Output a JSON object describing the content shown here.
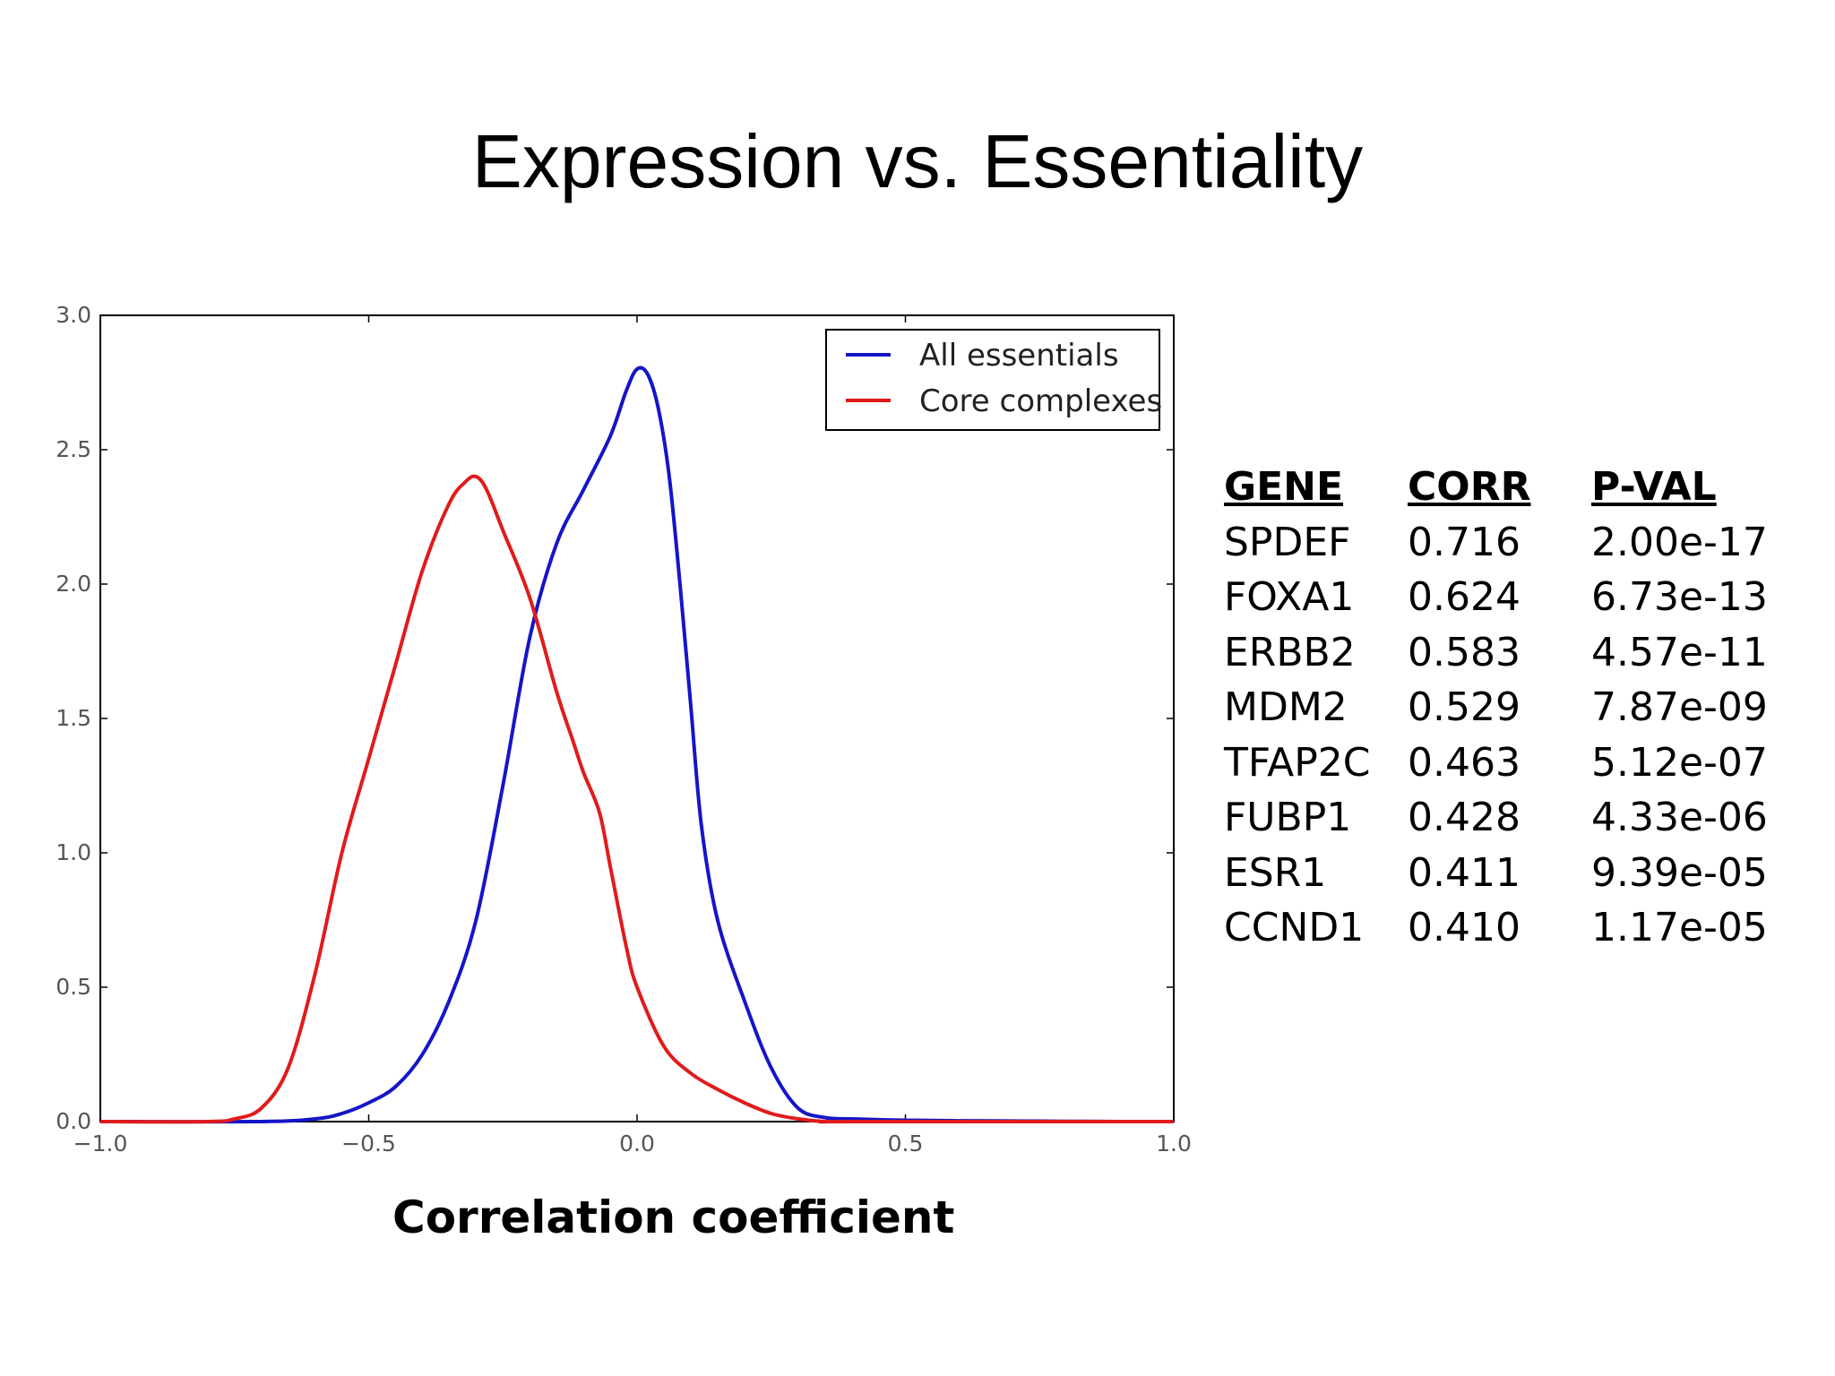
{
  "title": "Expression vs. Essentiality",
  "x_caption": "Correlation coefficient",
  "table": {
    "headers": [
      "GENE",
      "CORR",
      "P-VAL"
    ],
    "rows": [
      [
        "SPDEF",
        "0.716",
        "2.00e-17"
      ],
      [
        "FOXA1",
        "0.624",
        "6.73e-13"
      ],
      [
        "ERBB2",
        "0.583",
        "4.57e-11"
      ],
      [
        "MDM2",
        "0.529",
        "7.87e-09"
      ],
      [
        "TFAP2C",
        "0.463",
        "5.12e-07"
      ],
      [
        "FUBP1",
        "0.428",
        "4.33e-06"
      ],
      [
        "ESR1",
        "0.411",
        "9.39e-05"
      ],
      [
        "CCND1",
        "0.410",
        "1.17e-05"
      ]
    ]
  },
  "chart_data": {
    "type": "line",
    "xlim": [
      -1.0,
      1.0
    ],
    "ylim": [
      0.0,
      3.0
    ],
    "xticks": [
      -1.0,
      -0.5,
      0.0,
      0.5,
      1.0
    ],
    "xtick_labels": [
      "−1.0",
      "−0.5",
      "0.0",
      "0.5",
      "1.0"
    ],
    "yticks": [
      0.0,
      0.5,
      1.0,
      1.5,
      2.0,
      2.5,
      3.0
    ],
    "ytick_labels": [
      "0.0",
      "0.5",
      "1.0",
      "1.5",
      "2.0",
      "2.5",
      "3.0"
    ],
    "grid": false,
    "legend_position": "top-right",
    "series": [
      {
        "name": "All essentials",
        "color": "#1515c8",
        "x": [
          -1.0,
          -0.7,
          -0.6,
          -0.55,
          -0.5,
          -0.45,
          -0.4,
          -0.35,
          -0.3,
          -0.25,
          -0.2,
          -0.15,
          -0.1,
          -0.05,
          -0.02,
          0.0,
          0.02,
          0.04,
          0.06,
          0.08,
          0.1,
          0.12,
          0.15,
          0.2,
          0.25,
          0.3,
          0.35,
          0.4,
          0.5,
          0.6,
          0.7,
          0.8,
          0.9,
          1.0
        ],
        "y": [
          0.0,
          0.0,
          0.01,
          0.03,
          0.07,
          0.13,
          0.25,
          0.45,
          0.75,
          1.25,
          1.8,
          2.15,
          2.35,
          2.55,
          2.72,
          2.8,
          2.78,
          2.65,
          2.4,
          2.0,
          1.55,
          1.1,
          0.75,
          0.45,
          0.2,
          0.05,
          0.015,
          0.01,
          0.005,
          0.003,
          0.002,
          0.001,
          0.0,
          0.0
        ]
      },
      {
        "name": "Core complexes",
        "color": "#e01b1b",
        "x": [
          -1.0,
          -0.8,
          -0.75,
          -0.7,
          -0.65,
          -0.6,
          -0.55,
          -0.5,
          -0.45,
          -0.4,
          -0.35,
          -0.32,
          -0.3,
          -0.28,
          -0.25,
          -0.2,
          -0.15,
          -0.12,
          -0.1,
          -0.07,
          -0.05,
          -0.02,
          0.0,
          0.05,
          0.1,
          0.15,
          0.2,
          0.25,
          0.3,
          0.35,
          0.4,
          1.0
        ],
        "y": [
          0.0,
          0.0,
          0.01,
          0.05,
          0.2,
          0.55,
          1.0,
          1.35,
          1.7,
          2.05,
          2.3,
          2.38,
          2.4,
          2.35,
          2.2,
          1.95,
          1.6,
          1.42,
          1.3,
          1.15,
          0.95,
          0.65,
          0.5,
          0.28,
          0.18,
          0.12,
          0.07,
          0.03,
          0.01,
          0.0,
          0.0,
          0.0
        ]
      }
    ]
  }
}
